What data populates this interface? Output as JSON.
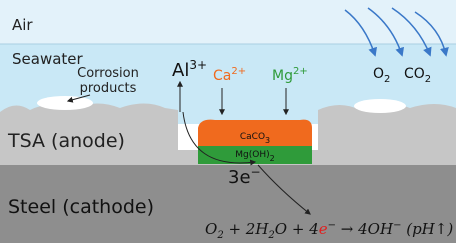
{
  "zones": {
    "air": "Air",
    "seawater": "Seawater",
    "anode": "TSA (anode)",
    "cathode": "Steel (cathode)"
  },
  "corrosion_products": [
    "Corrosion",
    "products"
  ],
  "ions": {
    "al": {
      "base": "Al",
      "sup": "3+"
    },
    "ca": {
      "base": "Ca",
      "sup": "2+"
    },
    "mg": {
      "base": "Mg",
      "sup": "2+"
    },
    "o2": {
      "base": "O",
      "sub": "2"
    },
    "co2": {
      "base": "CO",
      "sub": "2"
    }
  },
  "deposits": {
    "caco3": {
      "base": "CaCO",
      "sub": "3"
    },
    "mgoh2": {
      "base": "Mg(OH)",
      "sub": "2"
    }
  },
  "electrons": {
    "base": "3e",
    "sup": "−"
  },
  "equation": [
    {
      "text": "O"
    },
    {
      "sub": "2"
    },
    {
      "text": " + 2H"
    },
    {
      "sub": "2"
    },
    {
      "text": "O + 4"
    },
    {
      "red": "e"
    },
    {
      "sup": "−"
    },
    {
      "text": " → 4OH"
    },
    {
      "sup": "−"
    },
    {
      "text": " (pH↑)"
    }
  ]
}
